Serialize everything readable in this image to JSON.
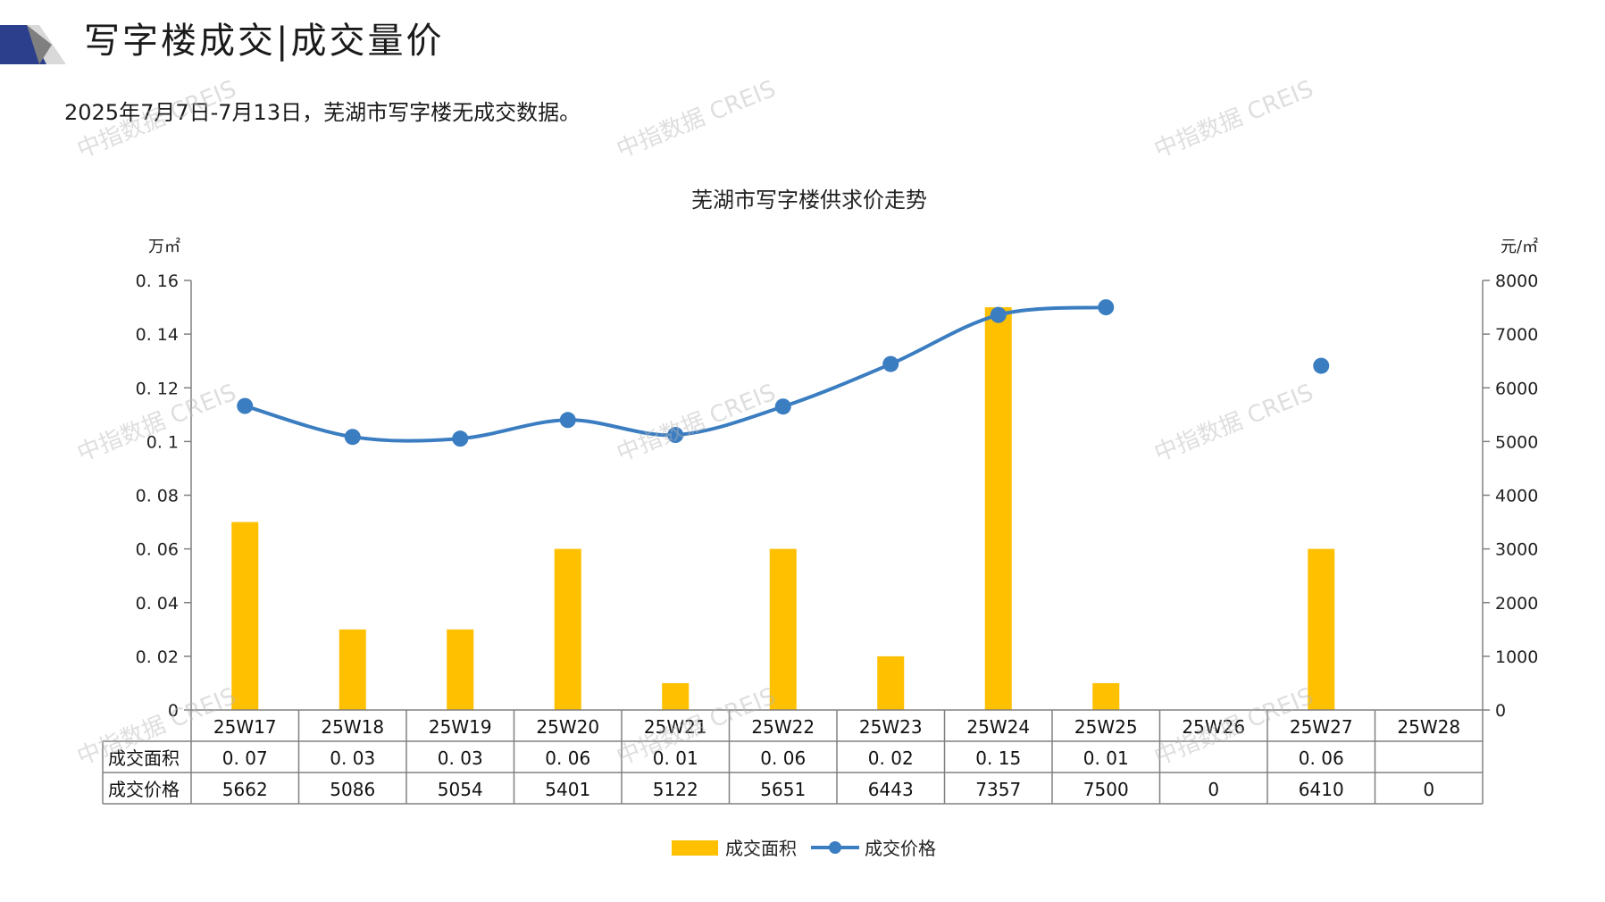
{
  "header": {
    "title": "写字楼成交|成交量价",
    "subtitle": "2025年7月7日-7月13日，芜湖市写字楼无成交数据。",
    "logo_icon": "corner-triangles-logo"
  },
  "watermark": {
    "text": "中指数据 CREIS"
  },
  "colors": {
    "bar": "#FFC000",
    "line": "#3A7DC1",
    "grid": "#808080"
  },
  "chart_data": {
    "type": "bar",
    "title": "芜湖市写字楼供求价走势",
    "y_left_unit": "万㎡",
    "y_right_unit": "元/㎡",
    "y_left_ticks": [
      "0",
      "0. 02",
      "0. 04",
      "0. 06",
      "0. 08",
      "0. 1",
      "0. 12",
      "0. 14",
      "0. 16"
    ],
    "y_right_ticks": [
      "0",
      "1000",
      "2000",
      "3000",
      "4000",
      "5000",
      "6000",
      "7000",
      "8000"
    ],
    "ylim_left": [
      0,
      0.16
    ],
    "ylim_right": [
      0,
      8000
    ],
    "categories": [
      "25W17",
      "25W18",
      "25W19",
      "25W20",
      "25W21",
      "25W22",
      "25W23",
      "25W24",
      "25W25",
      "25W26",
      "25W27",
      "25W28"
    ],
    "series": [
      {
        "name": "成交面积",
        "type": "bar",
        "axis": "left",
        "values": [
          0.07,
          0.03,
          0.03,
          0.06,
          0.01,
          0.06,
          0.02,
          0.15,
          0.01,
          null,
          0.06,
          null
        ],
        "labels": [
          "0. 07",
          "0. 03",
          "0. 03",
          "0. 06",
          "0. 01",
          "0. 06",
          "0. 02",
          "0. 15",
          "0. 01",
          "",
          "0. 06",
          ""
        ]
      },
      {
        "name": "成交价格",
        "type": "line",
        "axis": "right",
        "values": [
          5662,
          5086,
          5054,
          5401,
          5122,
          5651,
          6443,
          7357,
          7500,
          0,
          6410,
          0
        ],
        "labels": [
          "5662",
          "5086",
          "5054",
          "5401",
          "5122",
          "5651",
          "6443",
          "7357",
          "7500",
          "0",
          "6410",
          "0"
        ]
      }
    ],
    "legend_position": "bottom"
  }
}
